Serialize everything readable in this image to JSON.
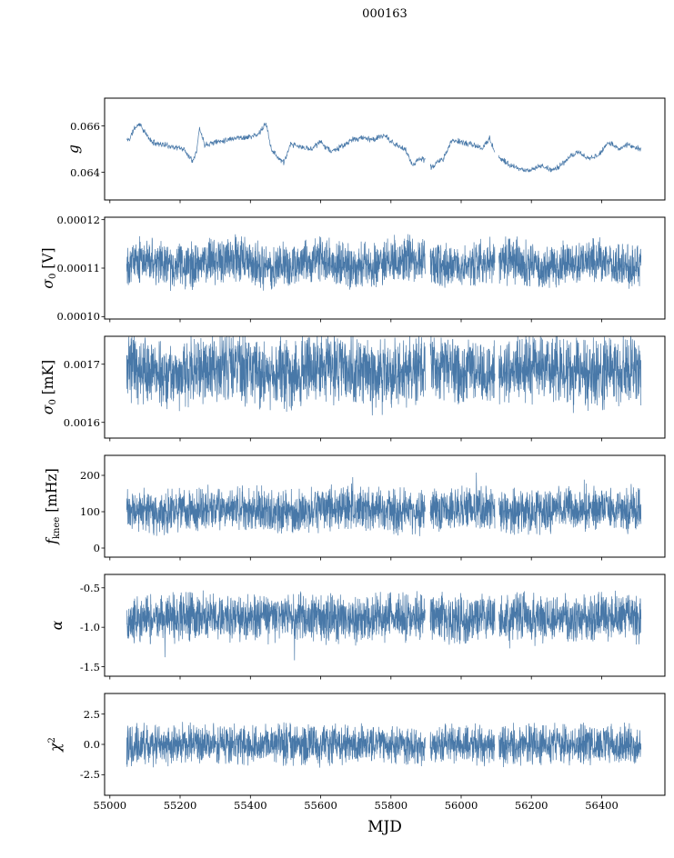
{
  "chart_data": {
    "type": "line",
    "title": "000163",
    "xlabel": "MJD",
    "line_color": "#4878a8",
    "frame_color": "#000000",
    "x_domain": [
      54985,
      56580
    ],
    "x_data_range": [
      55048,
      56512
    ],
    "x_ticks": [
      55000,
      55200,
      55400,
      55600,
      55800,
      56000,
      56200,
      56400
    ],
    "x_tick_labels": [
      "55000",
      "55200",
      "55400",
      "55600",
      "55800",
      "56000",
      "56200",
      "56400"
    ],
    "data_gaps": [
      [
        55898,
        55912
      ],
      [
        56096,
        56107
      ]
    ],
    "panels": [
      {
        "id": "g",
        "label": {
          "main": "g"
        },
        "ylim": [
          0.0628,
          0.0672
        ],
        "ytick_labels": [
          "0.064",
          "0.066"
        ],
        "signal": {
          "kind": "drift",
          "n": 1400,
          "seed": 11,
          "noise_amp": 0.00015,
          "key_x": [
            55055,
            55070,
            55085,
            55100,
            55120,
            55150,
            55180,
            55210,
            55235,
            55248,
            55255,
            55270,
            55300,
            55330,
            55360,
            55390,
            55420,
            55445,
            55460,
            55475,
            55495,
            55515,
            55540,
            55570,
            55600,
            55630,
            55660,
            55690,
            55720,
            55750,
            55780,
            55810,
            55840,
            55862,
            55880,
            55900,
            55915,
            55930,
            55950,
            55975,
            56000,
            56030,
            56060,
            56080,
            56095,
            56110,
            56140,
            56170,
            56200,
            56230,
            56255,
            56275,
            56300,
            56330,
            56360,
            56390,
            56420,
            56450,
            56475,
            56508
          ],
          "key_y": [
            0.0654,
            0.0659,
            0.0661,
            0.0657,
            0.0653,
            0.0652,
            0.0651,
            0.065,
            0.0645,
            0.065,
            0.0659,
            0.0652,
            0.0653,
            0.0654,
            0.0655,
            0.0655,
            0.0656,
            0.0661,
            0.065,
            0.0647,
            0.0644,
            0.0652,
            0.0651,
            0.065,
            0.0653,
            0.0649,
            0.0651,
            0.0654,
            0.0655,
            0.0654,
            0.0656,
            0.0652,
            0.065,
            0.0643,
            0.0646,
            0.0645,
            0.0642,
            0.0644,
            0.0646,
            0.0654,
            0.0653,
            0.0652,
            0.065,
            0.0655,
            0.0649,
            0.0646,
            0.0643,
            0.0641,
            0.0641,
            0.0643,
            0.0641,
            0.0642,
            0.0645,
            0.0649,
            0.0646,
            0.0647,
            0.0653,
            0.065,
            0.0652,
            0.065
          ]
        }
      },
      {
        "id": "sigma0_V",
        "label": {
          "main": "σ",
          "sub": "0",
          "unit": " [V]"
        },
        "ylim": [
          9.95e-05,
          0.0001205
        ],
        "ytick_labels": [
          "0.00010",
          "0.00011",
          "0.00012"
        ],
        "signal": {
          "kind": "noise",
          "n": 2600,
          "seed": 22,
          "base": 0.000111,
          "amp": 5.5e-06,
          "slow_amp": 8e-07,
          "slow_period": 260,
          "spike_prob": 0.004,
          "spike_dir": -1,
          "spike_scale": 4e-06
        }
      },
      {
        "id": "sigma0_mK",
        "label": {
          "main": "σ",
          "sub": "0",
          "unit": " [mK]"
        },
        "ylim": [
          0.001573,
          0.001748
        ],
        "ytick_labels": [
          "0.0016",
          "0.0017"
        ],
        "signal": {
          "kind": "noise",
          "n": 2600,
          "seed": 33,
          "base": 0.001688,
          "amp": 7e-05,
          "slow_amp": 8e-06,
          "slow_period": 300,
          "spike_prob": 0.004,
          "spike_dir": -1,
          "spike_scale": 4e-05
        }
      },
      {
        "id": "f_knee",
        "label": {
          "main": "f",
          "sub": "knee",
          "unit": " [mHz]"
        },
        "ylim": [
          -25,
          255
        ],
        "ytick_labels": [
          "0",
          "100",
          "200"
        ],
        "signal": {
          "kind": "noise",
          "n": 2600,
          "seed": 44,
          "base": 105,
          "amp": 70,
          "slow_amp": 5,
          "slow_period": 350,
          "spike_prob": 0.005,
          "spike_dir": 1,
          "spike_scale": 80
        }
      },
      {
        "id": "alpha",
        "label": {
          "main": "α"
        },
        "ylim": [
          -1.62,
          -0.33
        ],
        "ytick_labels": [
          "-0.5",
          "-1.0",
          "-1.5"
        ],
        "signal": {
          "kind": "noise",
          "n": 2600,
          "seed": 55,
          "base": -0.88,
          "amp": 0.35,
          "slow_amp": 0.02,
          "slow_period": 300,
          "spike_prob": 0.004,
          "spike_dir": -1,
          "spike_scale": 0.5
        }
      },
      {
        "id": "chi2",
        "label": {
          "main": "χ",
          "sup": "2"
        },
        "ylim": [
          -4.2,
          4.2
        ],
        "ytick_labels": [
          "-2.5",
          "0.0",
          "2.5"
        ],
        "signal": {
          "kind": "noise",
          "n": 2600,
          "seed": 66,
          "base": 0,
          "amp": 1.9,
          "slow_amp": 0.05,
          "slow_period": 280,
          "spike_prob": 0.004,
          "spike_dir": 0,
          "spike_scale": 1.4
        }
      }
    ]
  }
}
